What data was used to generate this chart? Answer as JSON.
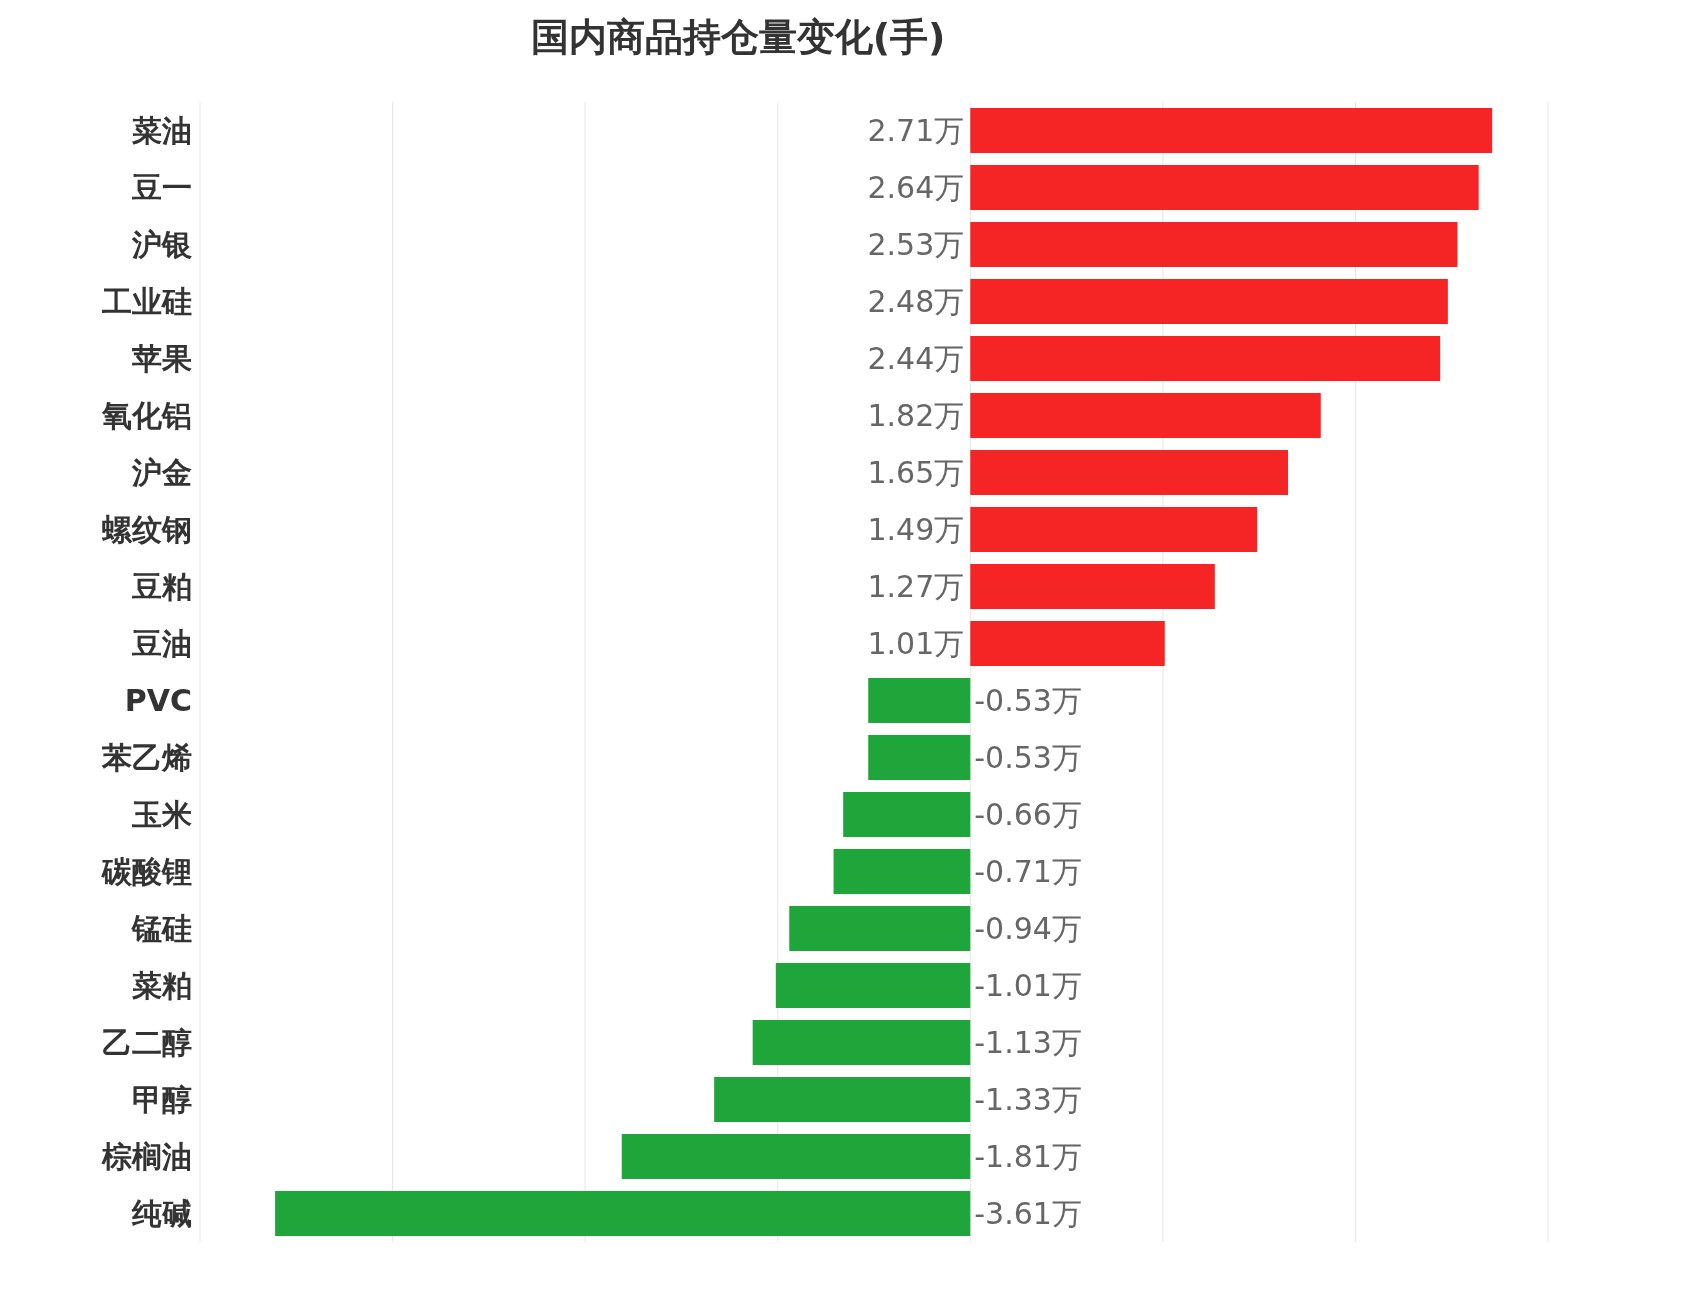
{
  "chart_data": {
    "type": "bar",
    "title": "国内商品持仓量变化(手)",
    "orientation": "horizontal",
    "categories": [
      "菜油",
      "豆一",
      "沪银",
      "工业硅",
      "苹果",
      "氧化铝",
      "沪金",
      "螺纹钢",
      "豆粕",
      "豆油",
      "PVC",
      "苯乙烯",
      "玉米",
      "碳酸锂",
      "锰硅",
      "菜粕",
      "乙二醇",
      "甲醇",
      "棕榈油",
      "纯碱"
    ],
    "values": [
      2.71,
      2.64,
      2.53,
      2.48,
      2.44,
      1.82,
      1.65,
      1.49,
      1.27,
      1.01,
      -0.53,
      -0.53,
      -0.66,
      -0.71,
      -0.94,
      -1.01,
      -1.13,
      -1.33,
      -1.81,
      -3.61
    ],
    "value_labels": [
      "2.71万",
      "2.64万",
      "2.53万",
      "2.48万",
      "2.44万",
      "1.82万",
      "1.65万",
      "1.49万",
      "1.27万",
      "1.01万",
      "-0.53万",
      "-0.53万",
      "-0.66万",
      "-0.71万",
      "-0.94万",
      "-1.01万",
      "-1.13万",
      "-1.33万",
      "-1.81万",
      "-3.61万"
    ],
    "colors": [
      "#f52525",
      "#f52525",
      "#f52525",
      "#f52525",
      "#f52525",
      "#f52525",
      "#f52525",
      "#f52525",
      "#f52525",
      "#f52525",
      "#1fa63a",
      "#1fa63a",
      "#1fa63a",
      "#1fa63a",
      "#1fa63a",
      "#1fa63a",
      "#1fa63a",
      "#1fa63a",
      "#1fa63a",
      "#1fa63a"
    ],
    "xlim": [
      -4,
      3
    ],
    "xticks": [
      {
        "value": -4,
        "label": null
      },
      {
        "value": -3,
        "label": null
      },
      {
        "value": -2,
        "label": null
      },
      {
        "value": -1,
        "label": null
      },
      {
        "value": 0,
        "label": null
      },
      {
        "value": 1,
        "label": null
      },
      {
        "value": 2,
        "label": null
      },
      {
        "value": 3,
        "label": null
      }
    ],
    "grid": "x",
    "tick_labels": "y"
  }
}
